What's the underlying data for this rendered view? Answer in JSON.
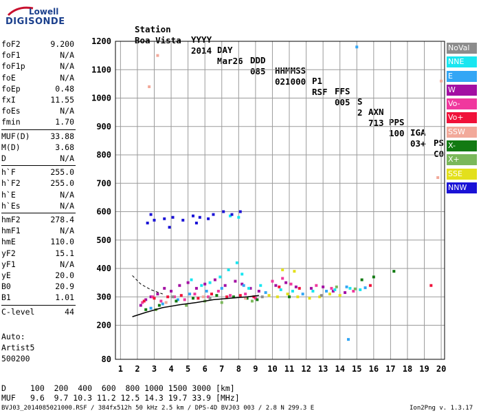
{
  "logo": {
    "line1": "Lowell",
    "line2": "DIGISONDE"
  },
  "header": {
    "labels": [
      "Station",
      "YYYY",
      "DAY",
      "DDD",
      "HHMMSS",
      "P1",
      "FFS",
      "S",
      "AXN",
      "PPS",
      "IGA",
      "PS"
    ],
    "values": [
      "Boa Vista",
      "2014",
      "Mar26",
      "085",
      "021000",
      "RSF",
      "005",
      "2",
      "713",
      "100",
      "03+",
      "C0"
    ]
  },
  "parameters": [
    {
      "key": "foF2",
      "value": "9.200"
    },
    {
      "key": "foF1",
      "value": "N/A"
    },
    {
      "key": "foF1p",
      "value": "N/A"
    },
    {
      "key": "foE",
      "value": "N/A"
    },
    {
      "key": "foEp",
      "value": "0.48"
    },
    {
      "key": "fxI",
      "value": "11.55"
    },
    {
      "key": "foEs",
      "value": "N/A"
    },
    {
      "key": "fmin",
      "value": "1.70"
    },
    {
      "key": "MUF(D)",
      "value": "33.88"
    },
    {
      "key": "M(D)",
      "value": "3.68"
    },
    {
      "key": "D",
      "value": "N/A"
    },
    {
      "key": "h`F",
      "value": "255.0"
    },
    {
      "key": "h`F2",
      "value": "255.0"
    },
    {
      "key": "h`E",
      "value": "N/A"
    },
    {
      "key": "h`Es",
      "value": "N/A"
    },
    {
      "key": "hmF2",
      "value": "278.4"
    },
    {
      "key": "hmF1",
      "value": "N/A"
    },
    {
      "key": "hmE",
      "value": "110.0"
    },
    {
      "key": "yF2",
      "value": "15.1"
    },
    {
      "key": "yF1",
      "value": "N/A"
    },
    {
      "key": "yE",
      "value": "20.0"
    },
    {
      "key": "B0",
      "value": "20.9"
    },
    {
      "key": "B1",
      "value": "1.01"
    },
    {
      "key": "C-level",
      "value": "44"
    }
  ],
  "auto": {
    "line1": "Auto:",
    "line2": "Artist5",
    "line3": "500200"
  },
  "legend": [
    {
      "label": "NoVal",
      "color": "#8c8c8c"
    },
    {
      "label": "NNE",
      "color": "#19e6f0"
    },
    {
      "label": "E",
      "color": "#33a6f5"
    },
    {
      "label": "W",
      "color": "#a30fa3"
    },
    {
      "label": "Vo-",
      "color": "#f0389e"
    },
    {
      "label": "Vo+",
      "color": "#f0123a"
    },
    {
      "label": "SSW",
      "color": "#f2a99a"
    },
    {
      "label": "X-",
      "color": "#127a12"
    },
    {
      "label": "X+",
      "color": "#7ab85a"
    },
    {
      "label": "SSE",
      "color": "#e3e01c"
    },
    {
      "label": "NNW",
      "color": "#1a12d6"
    }
  ],
  "muf_table": {
    "d_label": "D",
    "d_values": "100  200  400  600  800 1000 1500 3000 [km]",
    "muf_label": "MUF",
    "muf_values": "9.6  9.7 10.3 11.2 12.5 14.3 19.7 33.9 [MHz]"
  },
  "footer": {
    "left": "BVJ03_2014085021000.RSF / 384fx512h 50 kHz 2.5 km / DPS-4D BVJ03 003 / 2.8 N 299.3 E",
    "right": "Ion2Png v. 1.3.17"
  },
  "chart_data": {
    "type": "scatter",
    "x_ticks": [
      1,
      2,
      3,
      4,
      5,
      6,
      7,
      8,
      9,
      10,
      11,
      12,
      13,
      14,
      15,
      16,
      17,
      18,
      19,
      20
    ],
    "y_ticks": [
      80,
      200,
      300,
      400,
      500,
      600,
      700,
      800,
      900,
      1000,
      1100,
      1200
    ],
    "xlim": [
      0.7,
      20.2
    ],
    "ylim": [
      80,
      1200
    ],
    "grid": true,
    "legend_position": "right",
    "series": [
      {
        "name": "W",
        "color": "#a30fa3",
        "points": [
          [
            2.2,
            270
          ],
          [
            2.5,
            290
          ],
          [
            2.8,
            300
          ],
          [
            3.2,
            310
          ],
          [
            3.6,
            330
          ],
          [
            4.0,
            320
          ],
          [
            4.5,
            340
          ],
          [
            5.0,
            350
          ],
          [
            5.5,
            330
          ],
          [
            6.0,
            345
          ],
          [
            6.6,
            360
          ],
          [
            7.2,
            340
          ],
          [
            7.8,
            355
          ],
          [
            8.2,
            345
          ],
          [
            8.7,
            330
          ],
          [
            9.2,
            320
          ],
          [
            10.2,
            340
          ],
          [
            10.8,
            350
          ],
          [
            11.4,
            335
          ],
          [
            12.3,
            330
          ],
          [
            13.0,
            335
          ],
          [
            13.6,
            320
          ],
          [
            14.3,
            315
          ]
        ]
      },
      {
        "name": "Vo-",
        "color": "#f0389e",
        "points": [
          [
            2.3,
            280
          ],
          [
            2.9,
            300
          ],
          [
            3.4,
            285
          ],
          [
            4.2,
            300
          ],
          [
            4.8,
            290
          ],
          [
            5.4,
            310
          ],
          [
            6.2,
            300
          ],
          [
            6.8,
            320
          ],
          [
            7.5,
            305
          ],
          [
            8.4,
            310
          ],
          [
            9.0,
            295
          ],
          [
            10.0,
            355
          ],
          [
            10.6,
            365
          ],
          [
            11.1,
            345
          ],
          [
            12.6,
            340
          ],
          [
            13.5,
            330
          ],
          [
            14.8,
            320
          ]
        ]
      },
      {
        "name": "Vo+",
        "color": "#f0123a",
        "points": [
          [
            2.4,
            285
          ],
          [
            3.0,
            295
          ],
          [
            3.8,
            300
          ],
          [
            4.6,
            305
          ],
          [
            5.6,
            295
          ],
          [
            6.4,
            310
          ],
          [
            7.3,
            300
          ],
          [
            8.1,
            305
          ],
          [
            8.9,
            300
          ],
          [
            10.4,
            335
          ],
          [
            11.6,
            330
          ],
          [
            19.4,
            340
          ],
          [
            15.8,
            340
          ]
        ]
      },
      {
        "name": "NNE",
        "color": "#19e6f0",
        "points": [
          [
            5.2,
            360
          ],
          [
            5.8,
            340
          ],
          [
            6.3,
            350
          ],
          [
            6.9,
            370
          ],
          [
            7.4,
            395
          ],
          [
            7.9,
            420
          ],
          [
            8.2,
            380
          ],
          [
            8.6,
            330
          ],
          [
            9.3,
            340
          ],
          [
            10.5,
            325
          ],
          [
            11.2,
            320
          ],
          [
            12.4,
            320
          ],
          [
            13.7,
            325
          ],
          [
            14.6,
            330
          ],
          [
            15.2,
            325
          ],
          [
            7.5,
            585
          ],
          [
            8.0,
            580
          ]
        ]
      },
      {
        "name": "E",
        "color": "#33a6f5",
        "points": [
          [
            2.8,
            260
          ],
          [
            3.5,
            275
          ],
          [
            4.4,
            290
          ],
          [
            5.1,
            310
          ],
          [
            6.1,
            320
          ],
          [
            7.0,
            330
          ],
          [
            8.3,
            340
          ],
          [
            9.6,
            315
          ],
          [
            11.8,
            310
          ],
          [
            13.2,
            320
          ],
          [
            14.4,
            335
          ],
          [
            15.5,
            332
          ],
          [
            14.5,
            150
          ],
          [
            15.0,
            1180
          ]
        ]
      },
      {
        "name": "SSE",
        "color": "#e3e01c",
        "points": [
          [
            9.8,
            305
          ],
          [
            10.3,
            300
          ],
          [
            10.9,
            310
          ],
          [
            11.5,
            300
          ],
          [
            12.2,
            295
          ],
          [
            12.8,
            300
          ],
          [
            13.4,
            310
          ],
          [
            14.0,
            305
          ],
          [
            10.6,
            395
          ],
          [
            11.3,
            390
          ]
        ]
      },
      {
        "name": "NNW",
        "color": "#1a12d6",
        "points": [
          [
            2.6,
            560
          ],
          [
            3.0,
            570
          ],
          [
            3.6,
            575
          ],
          [
            4.1,
            580
          ],
          [
            4.7,
            570
          ],
          [
            5.3,
            585
          ],
          [
            5.7,
            580
          ],
          [
            6.5,
            590
          ],
          [
            7.1,
            600
          ],
          [
            7.6,
            590
          ],
          [
            8.1,
            600
          ],
          [
            2.8,
            590
          ],
          [
            3.9,
            545
          ],
          [
            5.5,
            560
          ],
          [
            6.2,
            575
          ]
        ]
      },
      {
        "name": "X-",
        "color": "#127a12",
        "points": [
          [
            2.5,
            255
          ],
          [
            3.3,
            270
          ],
          [
            4.3,
            285
          ],
          [
            5.3,
            295
          ],
          [
            6.7,
            305
          ],
          [
            7.7,
            300
          ],
          [
            8.5,
            295
          ],
          [
            9.1,
            290
          ],
          [
            11.0,
            300
          ],
          [
            15.3,
            360
          ],
          [
            16.0,
            370
          ],
          [
            17.2,
            390
          ]
        ]
      },
      {
        "name": "X+",
        "color": "#7ab85a",
        "points": [
          [
            3.1,
            255
          ],
          [
            4.9,
            270
          ],
          [
            6.0,
            285
          ],
          [
            7.0,
            280
          ],
          [
            8.8,
            285
          ],
          [
            13.8,
            335
          ],
          [
            14.9,
            328
          ]
        ]
      },
      {
        "name": "SSW",
        "color": "#f2a99a",
        "points": [
          [
            3.7,
            280
          ],
          [
            5.9,
            300
          ],
          [
            8.4,
            295
          ],
          [
            3.2,
            1150
          ],
          [
            2.7,
            1040
          ],
          [
            19.8,
            720
          ],
          [
            20.0,
            1060
          ]
        ]
      },
      {
        "name": "NoVal",
        "color": "#8c8c8c",
        "points": [
          [
            4.1,
            300
          ],
          [
            6.3,
            295
          ],
          [
            9.4,
            300
          ],
          [
            12.9,
            305
          ]
        ]
      }
    ],
    "trace_profile": [
      [
        1.7,
        230
      ],
      [
        2.5,
        245
      ],
      [
        3.5,
        262
      ],
      [
        4.5,
        272
      ],
      [
        5.5,
        280
      ],
      [
        6.5,
        290
      ],
      [
        7.5,
        295
      ],
      [
        8.5,
        300
      ],
      [
        9.2,
        305
      ]
    ],
    "dashed_profile": [
      [
        1.7,
        375
      ],
      [
        2.2,
        345
      ],
      [
        2.8,
        325
      ],
      [
        3.5,
        310
      ]
    ]
  }
}
